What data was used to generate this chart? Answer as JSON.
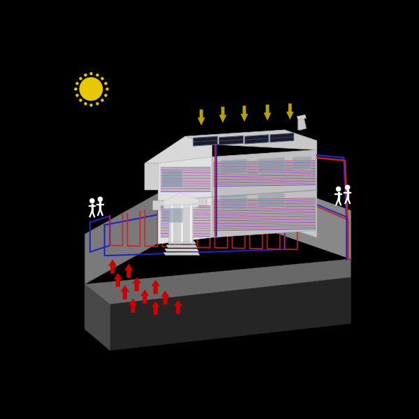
{
  "bg_color": "#000000",
  "sun_color": "#e8c800",
  "arrow_solar_color": "#b8a000",
  "arrow_geo_color": "#cc0000",
  "pipe_blue": "#2222cc",
  "pipe_red": "#cc2222",
  "person_color": "#ffffff",
  "figsize": [
    6.0,
    6.0
  ],
  "dpi": 100,
  "ground_top_color": "#808080",
  "ground_top_light": "#909090",
  "ground_top_shadow": "#686868",
  "ground_left_color": "#505050",
  "ground_right_color": "#606060",
  "ground_front_color": "#5a5a5a",
  "ground_sub_color": "#383838",
  "ground_sub_front_color": "#2a2a2a",
  "house_front_color": "#d8d8d8",
  "house_side_color": "#b8b8b8",
  "house_roof_color": "#d0d0d0",
  "house_roof_side_color": "#b0b0b0",
  "solar_panel_color": "#1a1a2e",
  "solar_panel_edge": "#555566",
  "chimney_color": "#c0c0c0"
}
